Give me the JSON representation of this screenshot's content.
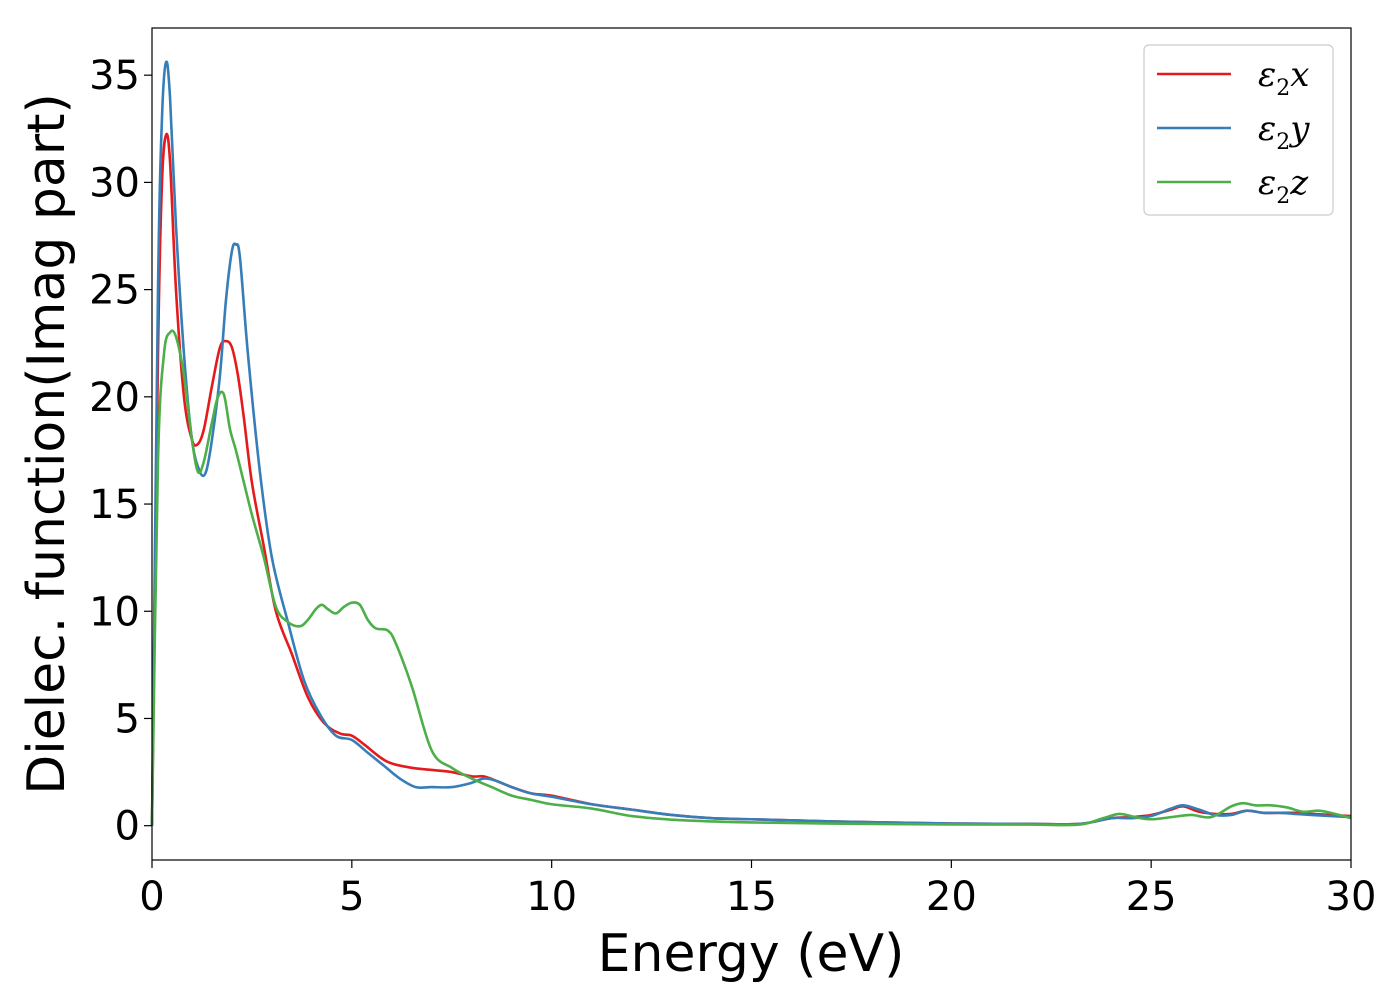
{
  "chart_data": {
    "type": "line",
    "title": "",
    "xlabel": "Energy (eV)",
    "ylabel": "Dielec. function(Imag part)",
    "xlim": [
      0,
      30
    ],
    "ylim": [
      -1.6,
      37.2
    ],
    "xticks": [
      0,
      5,
      10,
      15,
      20,
      25,
      30
    ],
    "yticks": [
      0,
      5,
      10,
      15,
      20,
      25,
      30,
      35
    ],
    "grid": false,
    "legend_position": "top-right",
    "series": [
      {
        "name": "ε2x",
        "legend": {
          "base": "ε",
          "sub": "2",
          "tail": "x"
        },
        "color": "#e41a1c",
        "x": [
          0,
          0.15,
          0.25,
          0.35,
          0.45,
          0.6,
          0.8,
          1.0,
          1.15,
          1.3,
          1.5,
          1.7,
          1.85,
          2.0,
          2.15,
          2.3,
          2.5,
          2.8,
          3.1,
          3.5,
          3.9,
          4.3,
          4.7,
          5.0,
          5.3,
          5.7,
          6.0,
          6.5,
          7.0,
          7.5,
          8.0,
          8.3,
          8.6,
          9.0,
          9.5,
          10.0,
          11.0,
          12.0,
          13.0,
          14.0,
          15.0,
          17.0,
          20.0,
          22.0,
          23.2,
          24.0,
          24.5,
          25.0,
          25.5,
          25.8,
          26.2,
          26.6,
          27.0,
          27.4,
          27.8,
          28.2,
          28.6,
          29.0,
          29.5,
          30.0
        ],
        "y": [
          0,
          22,
          30,
          32.2,
          31,
          25,
          20,
          18,
          17.8,
          18.5,
          20.5,
          22.3,
          22.6,
          22.3,
          21,
          19,
          16,
          13,
          10,
          8,
          6,
          4.8,
          4.3,
          4.2,
          3.8,
          3.2,
          2.9,
          2.7,
          2.6,
          2.5,
          2.3,
          2.3,
          2.1,
          1.8,
          1.5,
          1.4,
          1.0,
          0.75,
          0.5,
          0.35,
          0.3,
          0.2,
          0.1,
          0.08,
          0.08,
          0.35,
          0.4,
          0.5,
          0.75,
          0.9,
          0.65,
          0.55,
          0.55,
          0.7,
          0.6,
          0.6,
          0.6,
          0.55,
          0.5,
          0.45
        ]
      },
      {
        "name": "ε2y",
        "legend": {
          "base": "ε",
          "sub": "2",
          "tail": "y"
        },
        "color": "#377eb8",
        "x": [
          0,
          0.15,
          0.25,
          0.35,
          0.45,
          0.6,
          0.8,
          1.0,
          1.2,
          1.35,
          1.5,
          1.7,
          1.85,
          2.0,
          2.1,
          2.2,
          2.4,
          2.7,
          3.0,
          3.4,
          3.8,
          4.2,
          4.6,
          5.0,
          5.4,
          5.8,
          6.2,
          6.6,
          7.0,
          7.5,
          8.0,
          8.3,
          8.6,
          9.0,
          9.5,
          10.0,
          11.0,
          12.0,
          13.0,
          14.0,
          15.0,
          17.0,
          20.0,
          22.0,
          23.2,
          24.0,
          24.5,
          25.0,
          25.5,
          25.8,
          26.2,
          26.6,
          27.0,
          27.4,
          27.8,
          28.2,
          28.6,
          29.0,
          29.5,
          30.0
        ],
        "y": [
          0,
          25,
          33,
          35.6,
          34,
          28,
          22,
          18,
          16.5,
          16.5,
          18,
          21,
          24.5,
          26.8,
          27.1,
          26.5,
          22,
          16.5,
          12.5,
          9.5,
          6.8,
          5.2,
          4.2,
          4.0,
          3.4,
          2.8,
          2.2,
          1.8,
          1.8,
          1.8,
          2.0,
          2.2,
          2.1,
          1.8,
          1.5,
          1.35,
          1.0,
          0.75,
          0.5,
          0.35,
          0.3,
          0.2,
          0.1,
          0.08,
          0.08,
          0.35,
          0.35,
          0.45,
          0.8,
          0.95,
          0.75,
          0.5,
          0.5,
          0.7,
          0.6,
          0.6,
          0.55,
          0.5,
          0.45,
          0.4
        ]
      },
      {
        "name": "ε2z",
        "legend": {
          "base": "ε",
          "sub": "2",
          "tail": "z"
        },
        "color": "#4daf4a",
        "x": [
          0,
          0.15,
          0.3,
          0.45,
          0.6,
          0.8,
          1.0,
          1.15,
          1.3,
          1.5,
          1.65,
          1.8,
          1.95,
          2.1,
          2.3,
          2.5,
          2.8,
          3.1,
          3.4,
          3.7,
          3.9,
          4.1,
          4.25,
          4.4,
          4.6,
          4.8,
          5.0,
          5.2,
          5.4,
          5.6,
          5.9,
          6.1,
          6.5,
          7.0,
          7.5,
          8.0,
          8.5,
          9.0,
          9.5,
          10.0,
          11.0,
          12.0,
          13.0,
          14.0,
          15.0,
          17.0,
          20.0,
          22.0,
          23.2,
          23.8,
          24.2,
          24.6,
          25.0,
          25.5,
          26.0,
          26.5,
          27.0,
          27.3,
          27.6,
          28.0,
          28.4,
          28.8,
          29.2,
          29.6,
          30.0
        ],
        "y": [
          0,
          17,
          22,
          23,
          22.8,
          21,
          18,
          16.5,
          17,
          18.8,
          20,
          20.1,
          18.5,
          17.5,
          16,
          14.5,
          12.5,
          10.2,
          9.5,
          9.3,
          9.6,
          10.1,
          10.3,
          10.1,
          9.9,
          10.2,
          10.4,
          10.3,
          9.6,
          9.2,
          9.1,
          8.5,
          6.5,
          3.5,
          2.7,
          2.2,
          1.8,
          1.4,
          1.2,
          1.0,
          0.8,
          0.45,
          0.28,
          0.2,
          0.15,
          0.1,
          0.06,
          0.05,
          0.05,
          0.35,
          0.55,
          0.4,
          0.3,
          0.4,
          0.5,
          0.4,
          0.9,
          1.05,
          0.95,
          0.95,
          0.85,
          0.65,
          0.7,
          0.55,
          0.35
        ]
      }
    ]
  }
}
